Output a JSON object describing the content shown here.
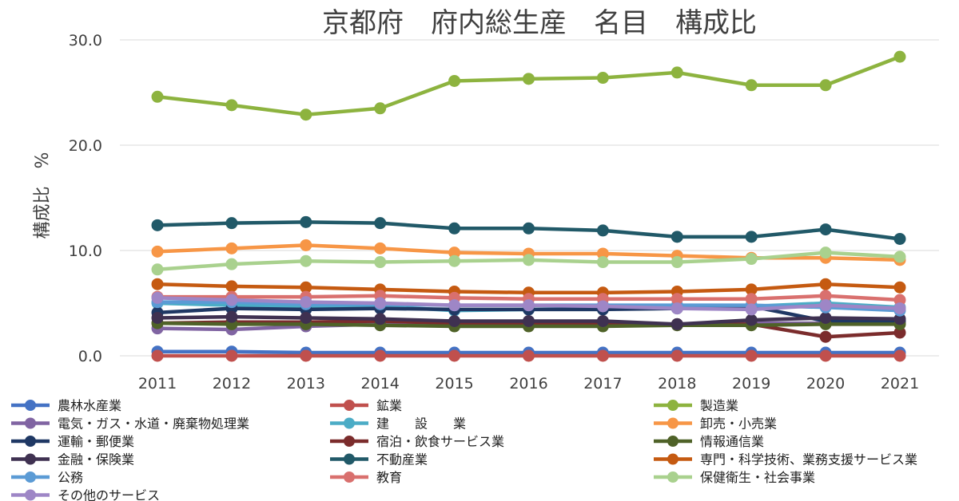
{
  "chart_data": {
    "type": "line",
    "title": "京都府　府内総生産　名目　構成比",
    "xlabel": "",
    "ylabel": "構成比　%",
    "ylim": [
      0,
      30
    ],
    "yticks": [
      "0.0",
      "10.0",
      "20.0",
      "30.0"
    ],
    "categories": [
      "2011",
      "2012",
      "2013",
      "2014",
      "2015",
      "2016",
      "2017",
      "2018",
      "2019",
      "2020",
      "2021"
    ],
    "grid": true,
    "legend_position": "bottom",
    "series": [
      {
        "name": "農林水産業",
        "color": "#4472C4",
        "values": [
          0.4,
          0.4,
          0.3,
          0.3,
          0.3,
          0.3,
          0.3,
          0.3,
          0.3,
          0.3,
          0.3
        ]
      },
      {
        "name": "鉱業",
        "color": "#C0504D",
        "values": [
          0.0,
          0.0,
          0.0,
          0.0,
          0.0,
          0.0,
          0.0,
          0.0,
          0.0,
          0.0,
          0.0
        ]
      },
      {
        "name": "製造業",
        "color": "#8DB33F",
        "values": [
          24.6,
          23.8,
          22.9,
          23.5,
          26.1,
          26.3,
          26.4,
          26.9,
          25.7,
          25.7,
          28.4
        ]
      },
      {
        "name": "電気・ガス・水道・廃棄物処理業",
        "color": "#8064A2",
        "values": [
          2.6,
          2.5,
          2.8,
          3.0,
          3.0,
          3.0,
          3.0,
          3.0,
          3.1,
          3.1,
          3.1
        ]
      },
      {
        "name": "建　　設　　業",
        "color": "#4BACC6",
        "values": [
          5.0,
          4.8,
          4.6,
          4.7,
          4.3,
          4.4,
          4.5,
          4.6,
          4.7,
          5.0,
          4.6
        ]
      },
      {
        "name": "卸売・小売業",
        "color": "#F79646",
        "values": [
          9.9,
          10.2,
          10.5,
          10.2,
          9.8,
          9.7,
          9.7,
          9.5,
          9.3,
          9.3,
          9.1
        ]
      },
      {
        "name": "運輸・郵便業",
        "color": "#1F3864",
        "values": [
          4.1,
          4.5,
          4.4,
          4.5,
          4.4,
          4.4,
          4.4,
          4.5,
          4.7,
          3.3,
          3.3
        ]
      },
      {
        "name": "宿泊・飲食サービス業",
        "color": "#7B2C2C",
        "values": [
          3.1,
          3.2,
          3.2,
          3.3,
          3.1,
          3.1,
          3.1,
          3.0,
          3.0,
          1.8,
          2.2
        ]
      },
      {
        "name": "情報通信業",
        "color": "#4F6228",
        "values": [
          3.1,
          3.0,
          3.0,
          2.9,
          2.8,
          2.8,
          2.8,
          2.9,
          2.9,
          3.0,
          3.0
        ]
      },
      {
        "name": "金融・保険業",
        "color": "#3F3151",
        "values": [
          3.6,
          3.7,
          3.6,
          3.5,
          3.3,
          3.3,
          3.3,
          3.0,
          3.4,
          3.6,
          3.5
        ]
      },
      {
        "name": "不動産業",
        "color": "#215968",
        "values": [
          12.4,
          12.6,
          12.7,
          12.6,
          12.1,
          12.1,
          11.9,
          11.3,
          11.3,
          12.0,
          11.1
        ]
      },
      {
        "name": "専門・科学技術、業務支援サービス業",
        "color": "#C55A11",
        "values": [
          6.8,
          6.6,
          6.5,
          6.3,
          6.1,
          6.0,
          6.0,
          6.1,
          6.3,
          6.8,
          6.5
        ]
      },
      {
        "name": "公務",
        "color": "#5B9BD5",
        "values": [
          5.1,
          5.1,
          4.9,
          4.9,
          4.8,
          4.8,
          4.8,
          4.8,
          4.8,
          4.6,
          4.3
        ]
      },
      {
        "name": "教育",
        "color": "#D9706E",
        "values": [
          5.6,
          5.6,
          5.6,
          5.7,
          5.5,
          5.4,
          5.4,
          5.4,
          5.4,
          5.7,
          5.3
        ]
      },
      {
        "name": "保健衛生・社会事業",
        "color": "#A9D18E",
        "values": [
          8.2,
          8.7,
          9.0,
          8.9,
          9.0,
          9.1,
          8.9,
          8.9,
          9.2,
          9.8,
          9.4
        ]
      },
      {
        "name": "その他のサービス",
        "color": "#9E86C6",
        "values": [
          5.5,
          5.3,
          5.1,
          5.0,
          4.8,
          4.8,
          4.7,
          4.5,
          4.4,
          4.8,
          4.5
        ]
      }
    ]
  }
}
